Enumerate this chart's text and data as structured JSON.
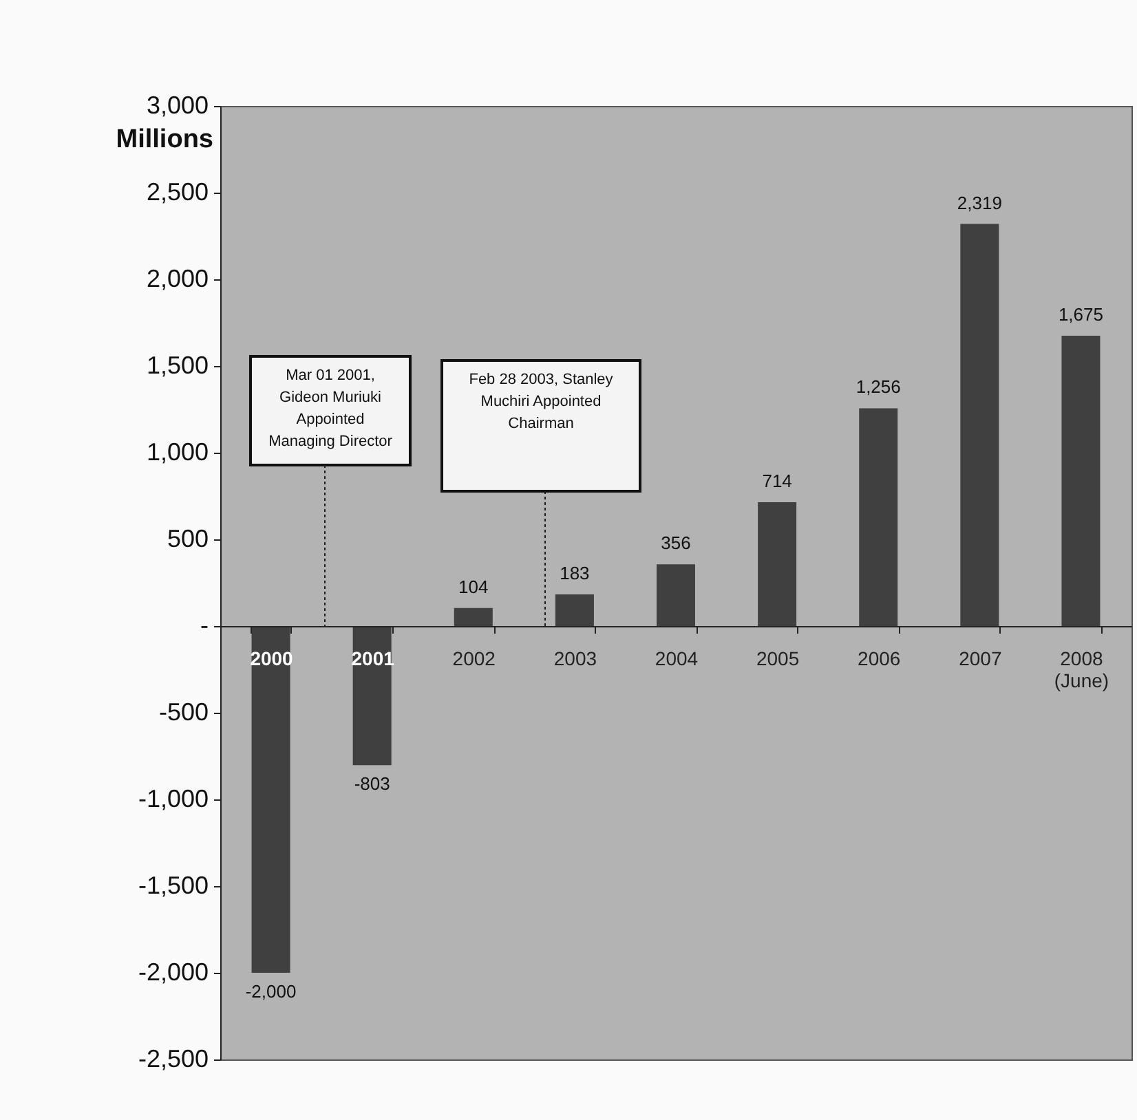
{
  "chart_data": {
    "type": "bar",
    "ylabel": "Millions",
    "categories": [
      "2000",
      "2001",
      "2002",
      "2003",
      "2004",
      "2005",
      "2006",
      "2007",
      "2008 (June)"
    ],
    "values": [
      -2000,
      -803,
      104,
      183,
      356,
      714,
      1256,
      2319,
      1675
    ],
    "value_labels": [
      "-2,000",
      "-803",
      "104",
      "183",
      "356",
      "714",
      "1,256",
      "2,319",
      "1,675"
    ],
    "color": "#404040",
    "ylim": [
      -2500,
      3000
    ],
    "yticks": [
      {
        "value": -2500,
        "label": "-2,500"
      },
      {
        "value": -2000,
        "label": "-2,000"
      },
      {
        "value": -1500,
        "label": "-1,500"
      },
      {
        "value": -1000,
        "label": "-1,000"
      },
      {
        "value": -500,
        "label": "-500"
      },
      {
        "value": 0,
        "label": "-"
      },
      {
        "value": 500,
        "label": "500"
      },
      {
        "value": 1000,
        "label": "1,000"
      },
      {
        "value": 1500,
        "label": "1,500"
      },
      {
        "value": 2000,
        "label": "2,000"
      },
      {
        "value": 2500,
        "label": "2,500"
      },
      {
        "value": 3000,
        "label": "3,000"
      }
    ],
    "annotations": [
      "Mar 01 2001,\nGideon Muriuki\nAppointed\nManaging Director",
      "Feb 28 2003, Stanley\nMuchiri Appointed\nChairman"
    ],
    "grid": false
  }
}
